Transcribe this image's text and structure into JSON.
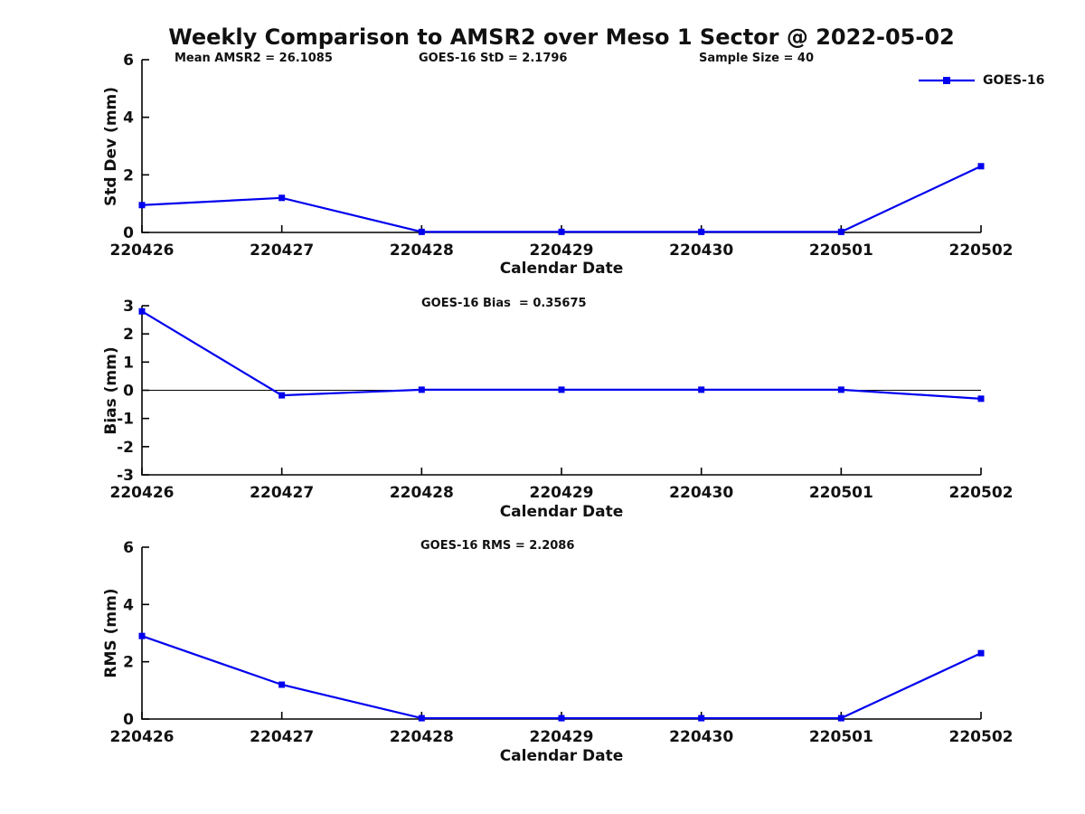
{
  "figure": {
    "title": "Weekly Comparison to AMSR2 over Meso 1 Sector @ 2022-05-02",
    "legend": {
      "label": "GOES-16",
      "position": "top-right"
    },
    "series_color": "#0000EE",
    "axis_color": "#000000",
    "background": "#FFFFFF"
  },
  "chart_data": [
    {
      "type": "line",
      "categories": [
        "220426",
        "220427",
        "220428",
        "220429",
        "220430",
        "220501",
        "220502"
      ],
      "series": [
        {
          "name": "GOES-16",
          "values": [
            0.95,
            1.2,
            0.02,
            0.02,
            0.02,
            0.02,
            2.3
          ]
        }
      ],
      "ylabel": "Std Dev (mm)",
      "xlabel": "Calendar Date",
      "ylim": [
        0,
        6
      ],
      "yticks": [
        0,
        2,
        4,
        6
      ],
      "grid": false,
      "zero_line": false,
      "annotations": [
        "Mean AMSR2 = 26.1085",
        "GOES-16 StD = 2.1796",
        "Sample Size = 40"
      ]
    },
    {
      "type": "line",
      "categories": [
        "220426",
        "220427",
        "220428",
        "220429",
        "220430",
        "220501",
        "220502"
      ],
      "series": [
        {
          "name": "GOES-16",
          "values": [
            2.8,
            -0.18,
            0.02,
            0.02,
            0.02,
            0.02,
            -0.3
          ]
        }
      ],
      "ylabel": "Bias (mm)",
      "xlabel": "Calendar Date",
      "ylim": [
        -3,
        3
      ],
      "yticks": [
        -3,
        -2,
        -1,
        0,
        1,
        2,
        3
      ],
      "grid": false,
      "zero_line": true,
      "annotations": [
        "GOES-16 Bias  = 0.35675"
      ]
    },
    {
      "type": "line",
      "categories": [
        "220426",
        "220427",
        "220428",
        "220429",
        "220430",
        "220501",
        "220502"
      ],
      "series": [
        {
          "name": "GOES-16",
          "values": [
            2.9,
            1.2,
            0.03,
            0.03,
            0.03,
            0.03,
            2.3
          ]
        }
      ],
      "ylabel": "RMS (mm)",
      "xlabel": "Calendar Date",
      "ylim": [
        0,
        6
      ],
      "yticks": [
        0,
        2,
        4,
        6
      ],
      "grid": false,
      "zero_line": false,
      "annotations": [
        "GOES-16 RMS = 2.2086"
      ]
    }
  ]
}
